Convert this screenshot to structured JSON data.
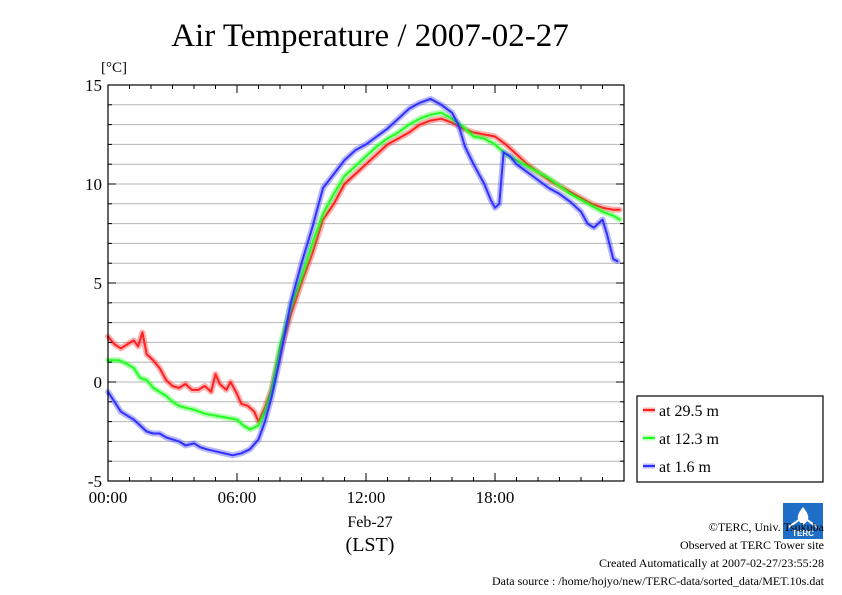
{
  "chart_data": {
    "type": "line",
    "title": "Air Temperature / 2007-02-27",
    "ylabel": "[°C]",
    "xlabel": "Feb-27",
    "xlabel2": "(LST)",
    "xlim": [
      0,
      24
    ],
    "ylim": [
      -5,
      15
    ],
    "x_ticks": [
      {
        "x": 0,
        "label": "00:00"
      },
      {
        "x": 6,
        "label": "06:00"
      },
      {
        "x": 12,
        "label": "12:00"
      },
      {
        "x": 18,
        "label": "18:00"
      }
    ],
    "y_ticks": [
      -5,
      0,
      5,
      10,
      15
    ],
    "grid": "horizontal",
    "legend_position": "right",
    "series": [
      {
        "name": "at 29.5 m",
        "color": "#ff2020",
        "points": [
          [
            0,
            2.3
          ],
          [
            0.3,
            1.9
          ],
          [
            0.6,
            1.7
          ],
          [
            0.9,
            1.9
          ],
          [
            1.2,
            2.1
          ],
          [
            1.4,
            1.8
          ],
          [
            1.6,
            2.5
          ],
          [
            1.8,
            1.4
          ],
          [
            2.1,
            1.1
          ],
          [
            2.4,
            0.7
          ],
          [
            2.7,
            0.1
          ],
          [
            3,
            -0.2
          ],
          [
            3.3,
            -0.3
          ],
          [
            3.6,
            -0.1
          ],
          [
            3.9,
            -0.4
          ],
          [
            4.2,
            -0.4
          ],
          [
            4.5,
            -0.2
          ],
          [
            4.8,
            -0.5
          ],
          [
            5,
            0.4
          ],
          [
            5.2,
            -0.1
          ],
          [
            5.5,
            -0.4
          ],
          [
            5.7,
            0
          ],
          [
            6,
            -0.6
          ],
          [
            6.2,
            -1.1
          ],
          [
            6.5,
            -1.2
          ],
          [
            6.8,
            -1.5
          ],
          [
            7.0,
            -2.0
          ],
          [
            7.3,
            -1.3
          ],
          [
            7.6,
            -0.4
          ],
          [
            8,
            1.5
          ],
          [
            8.5,
            3.4
          ],
          [
            9,
            5.0
          ],
          [
            9.5,
            6.5
          ],
          [
            10,
            8.2
          ],
          [
            10.5,
            9.0
          ],
          [
            11,
            10.0
          ],
          [
            11.5,
            10.5
          ],
          [
            12,
            11.0
          ],
          [
            12.5,
            11.5
          ],
          [
            13,
            12.0
          ],
          [
            13.5,
            12.3
          ],
          [
            14,
            12.6
          ],
          [
            14.5,
            13.0
          ],
          [
            15,
            13.2
          ],
          [
            15.5,
            13.3
          ],
          [
            16,
            13.1
          ],
          [
            16.5,
            12.8
          ],
          [
            17,
            12.6
          ],
          [
            17.5,
            12.5
          ],
          [
            18,
            12.4
          ],
          [
            18.5,
            12.0
          ],
          [
            19,
            11.5
          ],
          [
            19.5,
            11.0
          ],
          [
            20,
            10.6
          ],
          [
            20.5,
            10.2
          ],
          [
            21,
            9.9
          ],
          [
            21.5,
            9.6
          ],
          [
            22,
            9.3
          ],
          [
            22.5,
            9.0
          ],
          [
            23,
            8.8
          ],
          [
            23.5,
            8.7
          ],
          [
            23.8,
            8.7
          ]
        ]
      },
      {
        "name": "at 12.3 m",
        "color": "#20ff20",
        "points": [
          [
            0,
            1.1
          ],
          [
            0.5,
            1.1
          ],
          [
            0.9,
            0.9
          ],
          [
            1.2,
            0.7
          ],
          [
            1.5,
            0.2
          ],
          [
            1.8,
            0.1
          ],
          [
            2.1,
            -0.3
          ],
          [
            2.4,
            -0.5
          ],
          [
            2.7,
            -0.7
          ],
          [
            3,
            -1.0
          ],
          [
            3.3,
            -1.2
          ],
          [
            3.6,
            -1.3
          ],
          [
            4,
            -1.4
          ],
          [
            4.5,
            -1.6
          ],
          [
            5,
            -1.7
          ],
          [
            5.5,
            -1.8
          ],
          [
            6,
            -1.9
          ],
          [
            6.3,
            -2.2
          ],
          [
            6.6,
            -2.4
          ],
          [
            7,
            -2.2
          ],
          [
            7.3,
            -1.5
          ],
          [
            7.6,
            -0.5
          ],
          [
            8,
            1.8
          ],
          [
            8.5,
            3.8
          ],
          [
            9,
            5.3
          ],
          [
            9.5,
            7.0
          ],
          [
            10,
            8.5
          ],
          [
            10.5,
            9.5
          ],
          [
            11,
            10.4
          ],
          [
            11.5,
            10.9
          ],
          [
            12,
            11.4
          ],
          [
            12.5,
            11.9
          ],
          [
            13,
            12.3
          ],
          [
            13.5,
            12.6
          ],
          [
            14,
            13.0
          ],
          [
            14.5,
            13.3
          ],
          [
            15,
            13.5
          ],
          [
            15.5,
            13.6
          ],
          [
            16,
            13.3
          ],
          [
            16.5,
            12.9
          ],
          [
            17,
            12.4
          ],
          [
            17.5,
            12.3
          ],
          [
            18,
            12.0
          ],
          [
            18.5,
            11.5
          ],
          [
            19,
            11.2
          ],
          [
            19.5,
            10.9
          ],
          [
            20,
            10.6
          ],
          [
            20.5,
            10.3
          ],
          [
            21,
            9.9
          ],
          [
            21.5,
            9.5
          ],
          [
            22,
            9.2
          ],
          [
            22.5,
            8.9
          ],
          [
            23,
            8.6
          ],
          [
            23.5,
            8.4
          ],
          [
            23.8,
            8.2
          ]
        ]
      },
      {
        "name": "at 1.6 m",
        "color": "#3030ff",
        "points": [
          [
            0,
            -0.5
          ],
          [
            0.3,
            -1.0
          ],
          [
            0.6,
            -1.5
          ],
          [
            0.9,
            -1.7
          ],
          [
            1.2,
            -1.9
          ],
          [
            1.5,
            -2.2
          ],
          [
            1.8,
            -2.5
          ],
          [
            2.1,
            -2.6
          ],
          [
            2.4,
            -2.6
          ],
          [
            2.7,
            -2.8
          ],
          [
            3,
            -2.9
          ],
          [
            3.3,
            -3.0
          ],
          [
            3.6,
            -3.2
          ],
          [
            4,
            -3.1
          ],
          [
            4.3,
            -3.3
          ],
          [
            4.6,
            -3.4
          ],
          [
            5,
            -3.5
          ],
          [
            5.4,
            -3.6
          ],
          [
            5.8,
            -3.7
          ],
          [
            6.2,
            -3.6
          ],
          [
            6.6,
            -3.4
          ],
          [
            7,
            -2.9
          ],
          [
            7.3,
            -2.0
          ],
          [
            7.6,
            -0.8
          ],
          [
            8,
            1.2
          ],
          [
            8.5,
            4.0
          ],
          [
            9,
            6.0
          ],
          [
            9.5,
            7.8
          ],
          [
            10,
            9.8
          ],
          [
            10.5,
            10.5
          ],
          [
            11,
            11.2
          ],
          [
            11.5,
            11.7
          ],
          [
            12,
            12.0
          ],
          [
            12.5,
            12.4
          ],
          [
            13,
            12.8
          ],
          [
            13.5,
            13.3
          ],
          [
            14,
            13.8
          ],
          [
            14.5,
            14.1
          ],
          [
            15,
            14.3
          ],
          [
            15.5,
            14.0
          ],
          [
            16,
            13.6
          ],
          [
            16.3,
            13.0
          ],
          [
            16.6,
            11.9
          ],
          [
            17,
            11.0
          ],
          [
            17.5,
            10.0
          ],
          [
            17.8,
            9.2
          ],
          [
            18,
            8.8
          ],
          [
            18.2,
            9.0
          ],
          [
            18.4,
            11.6
          ],
          [
            18.7,
            11.4
          ],
          [
            19,
            11.0
          ],
          [
            19.5,
            10.6
          ],
          [
            20,
            10.2
          ],
          [
            20.5,
            9.8
          ],
          [
            21,
            9.5
          ],
          [
            21.5,
            9.1
          ],
          [
            22,
            8.6
          ],
          [
            22.3,
            8.0
          ],
          [
            22.6,
            7.8
          ],
          [
            23,
            8.2
          ],
          [
            23.2,
            7.5
          ],
          [
            23.5,
            6.2
          ],
          [
            23.7,
            6.1
          ]
        ]
      }
    ]
  },
  "footer": {
    "copyright": "©TERC, Univ. Tsukuba",
    "observed": "Observed at TERC Tower site",
    "created": "Created Automatically at 2007-02-27/23:55:28",
    "source": "Data source : /home/hojyo/new/TERC-data/sorted_data/MET.10s.dat"
  },
  "logo": {
    "text": "TERC",
    "color": "#1f6fc8"
  }
}
